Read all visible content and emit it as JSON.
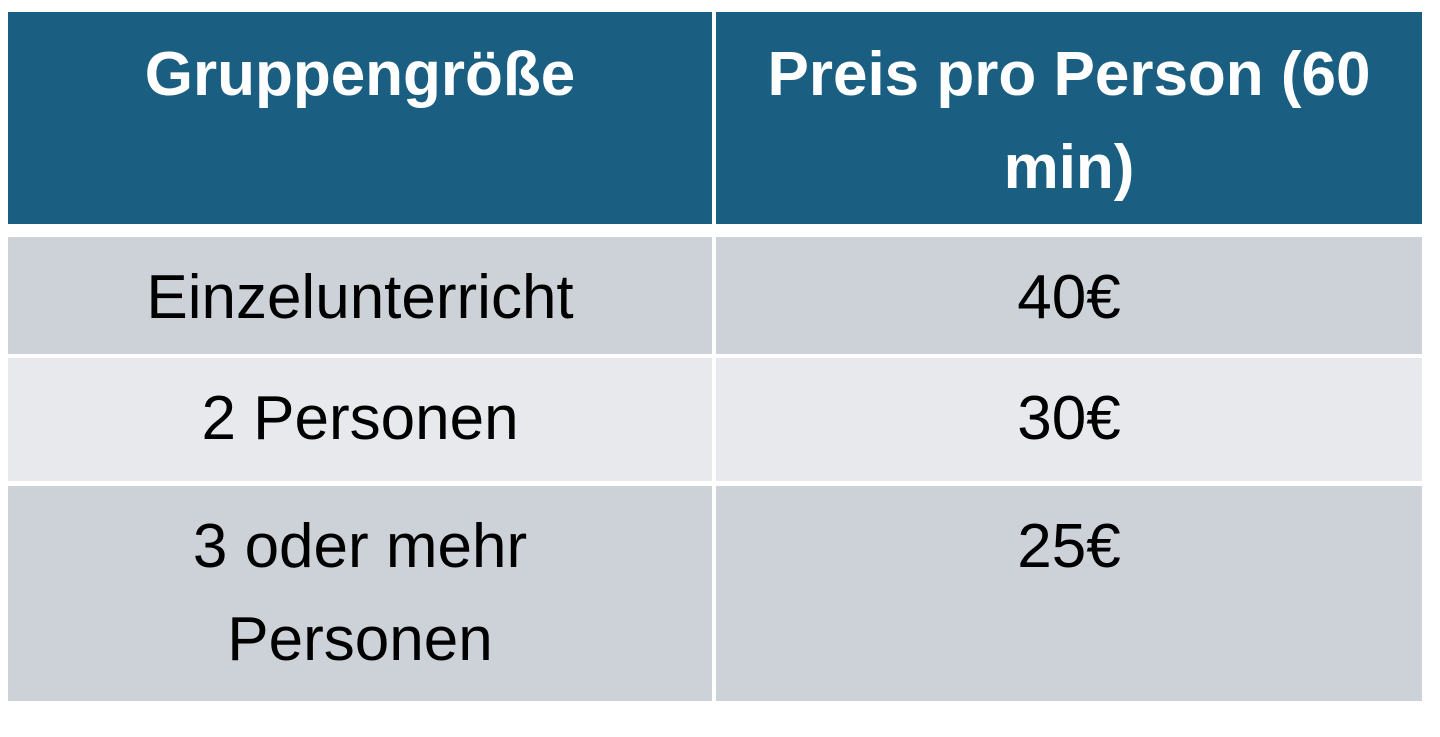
{
  "table": {
    "header": [
      "Gruppengröße",
      "Preis pro Person (60 min)"
    ],
    "rows": [
      [
        "Einzelunterricht",
        "40€"
      ],
      [
        "2 Personen",
        "30€"
      ],
      [
        "3 oder mehr Personen",
        "25€"
      ]
    ]
  }
}
